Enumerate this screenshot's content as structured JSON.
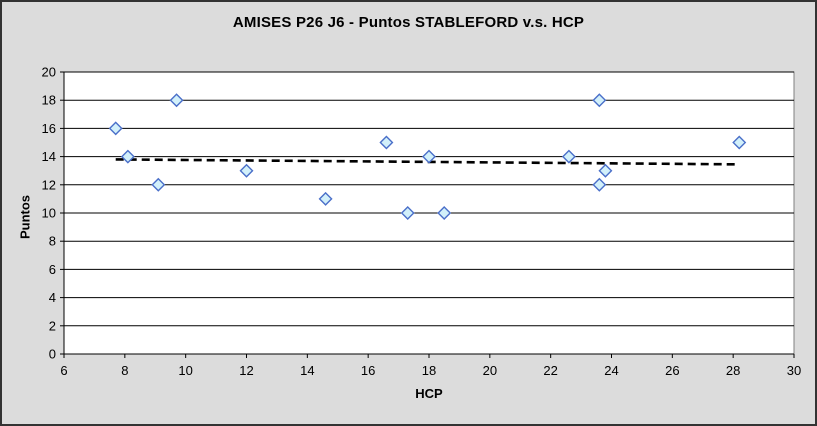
{
  "window": {
    "background_color": "#dcdcdc",
    "border_color": "#333333"
  },
  "chart_data": {
    "type": "scatter",
    "title": "AMISES P26 J6 - Puntos STABLEFORD v.s. HCP",
    "xlabel": "HCP",
    "ylabel": "Puntos",
    "xlim": [
      6,
      30
    ],
    "ylim": [
      0,
      20
    ],
    "xtick_step": 2,
    "ytick_step": 2,
    "grid": "horizontal",
    "legend": "none",
    "points": [
      [
        7.7,
        16
      ],
      [
        8.1,
        14
      ],
      [
        9.1,
        12
      ],
      [
        9.7,
        18
      ],
      [
        12.0,
        13
      ],
      [
        14.6,
        11
      ],
      [
        16.6,
        15
      ],
      [
        17.3,
        10
      ],
      [
        18.0,
        14
      ],
      [
        18.5,
        10
      ],
      [
        22.6,
        14
      ],
      [
        23.6,
        18
      ],
      [
        23.6,
        12
      ],
      [
        23.8,
        13
      ],
      [
        28.2,
        15
      ]
    ],
    "trendline": {
      "style": "dashed",
      "x1": 7.7,
      "y1": 13.8,
      "x2": 28.15,
      "y2": 13.45
    },
    "colors": {
      "plot_background": "#ffffff",
      "plot_border": "#808080",
      "gridline": "#000000",
      "axis": "#000000",
      "tick_text": "#000000",
      "marker_fill": "#d2f0fa",
      "marker_stroke": "#4a6fc9",
      "trendline": "#000000"
    }
  }
}
